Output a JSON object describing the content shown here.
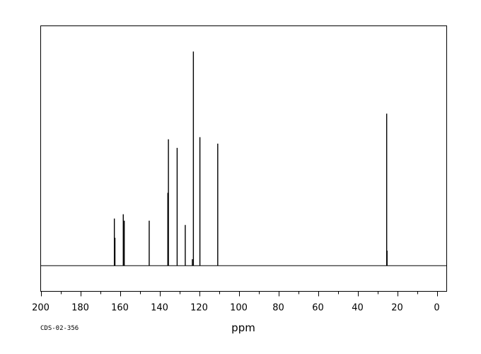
{
  "chart_data": {
    "type": "line",
    "title": "",
    "xlabel": "ppm",
    "ylabel": "",
    "xlim": [
      200,
      -5
    ],
    "ylim": [
      -12,
      112
    ],
    "x_reversed": true,
    "x_ticks": [
      200,
      180,
      160,
      140,
      120,
      100,
      80,
      60,
      40,
      20,
      0
    ],
    "minor_tick_step": 10,
    "grid": false,
    "legend": "none",
    "baseline": 0,
    "peaks": [
      {
        "ppm": 162.8,
        "height": 22
      },
      {
        "ppm": 162.5,
        "height": 13
      },
      {
        "ppm": 158.3,
        "height": 24
      },
      {
        "ppm": 157.8,
        "height": 21
      },
      {
        "ppm": 145.2,
        "height": 21
      },
      {
        "ppm": 135.8,
        "height": 34
      },
      {
        "ppm": 135.5,
        "height": 59
      },
      {
        "ppm": 131.1,
        "height": 55
      },
      {
        "ppm": 127.0,
        "height": 19
      },
      {
        "ppm": 123.4,
        "height": 3
      },
      {
        "ppm": 122.9,
        "height": 100
      },
      {
        "ppm": 119.6,
        "height": 60
      },
      {
        "ppm": 110.6,
        "height": 57
      },
      {
        "ppm": 25.3,
        "height": 71
      },
      {
        "ppm": 25.1,
        "height": 7
      }
    ],
    "annotations": [
      "CDS-02-356"
    ],
    "line_color": "#000000"
  }
}
